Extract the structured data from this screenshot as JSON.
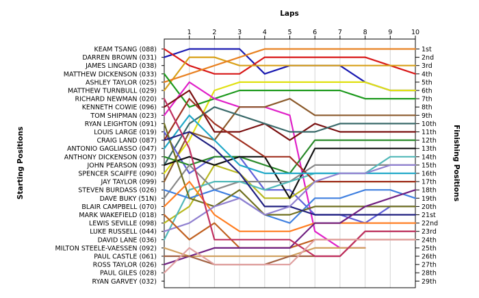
{
  "chart_data": {
    "type": "line",
    "title": "Laps",
    "ylabel_left": "Starting Positions",
    "ylabel_right": "Finishing Positions",
    "x": [
      0,
      1,
      2,
      3,
      4,
      5,
      6,
      7,
      8,
      9,
      10
    ],
    "x_tick_labels": [
      "1",
      "2",
      "3",
      "4",
      "5",
      "6",
      "7",
      "8",
      "9",
      "10"
    ],
    "position_range": [
      1,
      29
    ],
    "grid": "vertical",
    "drivers": [
      "KEAM TSANG (088)",
      "DARREN BROWN (031)",
      "JAMES LINGARD (038)",
      "MATTHEW DICKENSON (033)",
      "ASHLEY TAYLOR (025)",
      "MATTHEW TURNBULL (029)",
      "RICHARD NEWMAN (020)",
      "KENNETH COWIE (096)",
      "TOM SHIPMAN (023)",
      "RYAN LEIGHTON (091)",
      "LOUIS LARGE (019)",
      "CRAIG LAND (087)",
      "ANTONIO GAGLIASSO (047)",
      "ANTHONY DICKENSON (037)",
      "JOHN PEARSON (093)",
      "SPENCER SCAIFFE (090)",
      "JAY TAYLOR (099)",
      "STEVEN BURDASS (026)",
      "DAVE BUKY (51N)",
      "BLAIR CAMPBELL (070)",
      "MARK WAKEFIELD (018)",
      "LEWIS SEVILLE (098)",
      "LUKE RUSSELL (044)",
      "DAVID LANE (036)",
      "MILTON STEELE-VAESSEN (092)",
      "PAUL CASTLE (061)",
      "ROSS TAYLOR (026)",
      "PAUL GILES (028)",
      "RYAN GARVEY (032)"
    ],
    "finishing_labels": [
      "1st",
      "2nd",
      "3rd",
      "4th",
      "5th",
      "6th",
      "7th",
      "8th",
      "9th",
      "10th",
      "11th",
      "12th",
      "13th",
      "14th",
      "15th",
      "16th",
      "17th",
      "18th",
      "19th",
      "20th",
      "21st",
      "22nd",
      "23rd",
      "24th",
      "25th",
      "26th",
      "27th",
      "28th",
      "29th"
    ],
    "series": [
      {
        "color": "#1818b0",
        "values": [
          2,
          1,
          1,
          1,
          4,
          3,
          3,
          3,
          5,
          6,
          6
        ]
      },
      {
        "color": "#d81818",
        "values": [
          1,
          3,
          4,
          4,
          2,
          2,
          2,
          2,
          2,
          3,
          4
        ]
      },
      {
        "color": "#d8a018",
        "values": [
          6,
          2,
          2,
          3,
          3,
          3,
          3,
          3,
          3,
          3,
          3
        ]
      },
      {
        "color": "#e88020",
        "values": [
          5,
          4,
          3,
          2,
          1,
          1,
          1,
          1,
          1,
          1,
          1
        ]
      },
      {
        "color": "#e0e010",
        "values": [
          16,
          12,
          6,
          5,
          5,
          5,
          5,
          5,
          5,
          6,
          6
        ]
      },
      {
        "color": "#1e9a1e",
        "values": [
          4,
          8,
          7,
          6,
          6,
          6,
          6,
          6,
          7,
          7,
          7
        ]
      },
      {
        "color": "#e020c8",
        "values": [
          9,
          5,
          7,
          8,
          8,
          9,
          23,
          25,
          25,
          null,
          null
        ]
      },
      {
        "color": "#8b5a2b",
        "values": [
          17,
          11,
          12,
          8,
          8,
          7,
          9,
          9,
          9,
          9,
          9
        ]
      },
      {
        "color": "#7a1010",
        "values": [
          8,
          6,
          11,
          11,
          10,
          12,
          10,
          11,
          11,
          11,
          11
        ]
      },
      {
        "color": "#3a6a6a",
        "values": [
          15,
          10,
          8,
          9,
          10,
          11,
          11,
          10,
          10,
          10,
          10
        ]
      },
      {
        "color": "#6060d8",
        "values": [
          11,
          16,
          14,
          14,
          18,
          18,
          21,
          21,
          22,
          20,
          20
        ]
      },
      {
        "color": "#2a8a2a",
        "values": [
          14,
          15,
          14,
          14,
          15,
          16,
          12,
          12,
          12,
          12,
          12
        ]
      },
      {
        "color": "#b8b820",
        "values": [
          22,
          20,
          15,
          16,
          19,
          19,
          17,
          17,
          17,
          17,
          17
        ]
      },
      {
        "color": "#101010",
        "values": [
          15,
          14,
          15,
          14,
          14,
          19,
          13,
          13,
          13,
          13,
          13
        ]
      },
      {
        "color": "#888888",
        "values": [
          19,
          15,
          18,
          17,
          17,
          17,
          15,
          15,
          15,
          15,
          15
        ]
      },
      {
        "color": "#50b8b8",
        "values": [
          24,
          18,
          17,
          17,
          18,
          17,
          16,
          16,
          16,
          14,
          14
        ]
      },
      {
        "color": "#a03020",
        "values": [
          12,
          7,
          10,
          12,
          14,
          14,
          17,
          17,
          17,
          17,
          17
        ]
      },
      {
        "color": "#4080e0",
        "values": [
          18,
          19,
          18,
          19,
          21,
          22,
          19,
          19,
          18,
          18,
          19
        ]
      },
      {
        "color": "#20a8c8",
        "values": [
          13,
          9,
          12,
          15,
          16,
          16,
          16,
          16,
          16,
          16,
          16
        ]
      },
      {
        "color": "#707020",
        "values": [
          10,
          19,
          20,
          18,
          21,
          21,
          20,
          20,
          20,
          20,
          20
        ]
      },
      {
        "color": "#202080",
        "values": [
          12,
          11,
          13,
          16,
          20,
          20,
          21,
          21,
          21,
          21,
          21
        ]
      },
      {
        "color": "#ff7d20",
        "values": [
          20,
          17,
          21,
          23,
          23,
          23,
          22,
          22,
          22,
          22,
          22
        ]
      },
      {
        "color": "#9080d0",
        "values": [
          23,
          22,
          20,
          19,
          21,
          20,
          17,
          16,
          16,
          15,
          15
        ]
      },
      {
        "color": "#c06020",
        "values": [
          21,
          24,
          22,
          25,
          25,
          25,
          24,
          24,
          24,
          24,
          24
        ]
      },
      {
        "color": "#d0a060",
        "values": [
          25,
          26,
          26,
          26,
          26,
          26,
          25,
          25,
          25,
          null,
          null
        ]
      },
      {
        "color": "#702080",
        "values": [
          27,
          26,
          25,
          25,
          25,
          25,
          22,
          22,
          20,
          19,
          18
        ]
      },
      {
        "color": "#a06040",
        "values": [
          26,
          26,
          27,
          27,
          27,
          26,
          26,
          26,
          23,
          23,
          23
        ]
      },
      {
        "color": "#c03060",
        "values": [
          7,
          13,
          24,
          24,
          24,
          24,
          26,
          26,
          23,
          23,
          23
        ]
      },
      {
        "color": "#e0a0a0",
        "values": [
          28,
          25,
          27,
          27,
          27,
          27,
          24,
          24,
          24,
          24,
          24
        ]
      }
    ]
  }
}
